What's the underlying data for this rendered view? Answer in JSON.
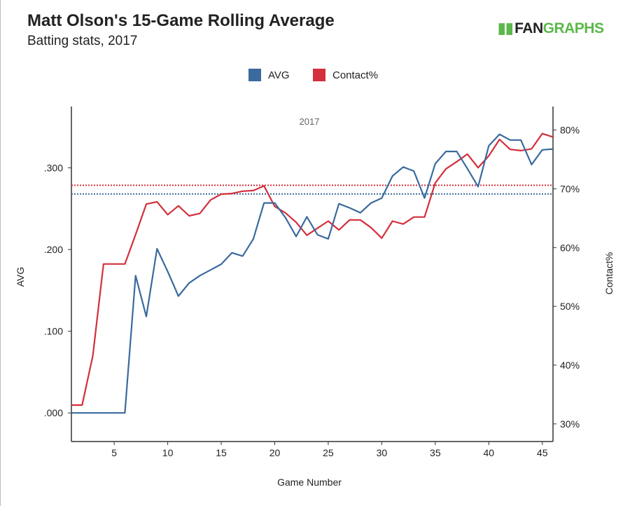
{
  "title": "Matt Olson's 15-Game Rolling Average",
  "subtitle": "Batting stats, 2017",
  "logo": {
    "text_dark": "FAN",
    "text_green": "GRAPHS"
  },
  "chart_data": {
    "type": "line",
    "annotation": "2017",
    "xlabel": "Game Number",
    "ylabel_left": "AVG",
    "ylabel_right": "Contact%",
    "xlim": [
      1,
      46
    ],
    "ylim_left": [
      -0.035,
      0.375
    ],
    "ylim_right": [
      27,
      84
    ],
    "x_ticks": [
      5,
      10,
      15,
      20,
      25,
      30,
      35,
      40,
      45
    ],
    "y_ticks_left": [
      {
        "v": 0,
        "label": ".000"
      },
      {
        "v": 0.1,
        "label": ".100"
      },
      {
        "v": 0.2,
        "label": ".200"
      },
      {
        "v": 0.3,
        "label": ".300"
      }
    ],
    "y_ticks_right": [
      {
        "v": 30,
        "label": "30%"
      },
      {
        "v": 40,
        "label": "40%"
      },
      {
        "v": 50,
        "label": "50%"
      },
      {
        "v": 60,
        "label": "60%"
      },
      {
        "v": 70,
        "label": "70%"
      },
      {
        "v": 80,
        "label": "80%"
      }
    ],
    "x": [
      1,
      2,
      3,
      4,
      5,
      6,
      7,
      8,
      9,
      10,
      11,
      12,
      13,
      14,
      15,
      16,
      17,
      18,
      19,
      20,
      21,
      22,
      23,
      24,
      25,
      26,
      27,
      28,
      29,
      30,
      31,
      32,
      33,
      34,
      35,
      36,
      37,
      38,
      39,
      40,
      41,
      42,
      43,
      44,
      45,
      46
    ],
    "series": [
      {
        "name": "AVG",
        "axis": "left",
        "color": "#3a6a9e",
        "avg_line": 0.268,
        "values": [
          0,
          0,
          0,
          0,
          0,
          0,
          0.168,
          0.118,
          0.201,
          0.173,
          0.143,
          0.159,
          0.168,
          0.175,
          0.182,
          0.196,
          0.192,
          0.213,
          0.257,
          0.257,
          0.239,
          0.216,
          0.24,
          0.218,
          0.213,
          0.256,
          0.251,
          0.245,
          0.257,
          0.263,
          0.29,
          0.301,
          0.296,
          0.263,
          0.305,
          0.32,
          0.32,
          0.299,
          0.277,
          0.327,
          0.341,
          0.334,
          0.334,
          0.304,
          0.322,
          0.323
        ]
      },
      {
        "name": "Contact%",
        "axis": "right",
        "color": "#d32f3c",
        "avg_line": 70.6,
        "values": [
          33.2,
          33.2,
          41.6,
          57.2,
          57.2,
          57.2,
          62.2,
          67.4,
          67.8,
          65.6,
          67.1,
          65.4,
          65.8,
          68.1,
          69.1,
          69.2,
          69.6,
          69.7,
          70.5,
          67.0,
          65.9,
          64.3,
          62.1,
          63.3,
          64.5,
          63.0,
          64.7,
          64.7,
          63.4,
          61.6,
          64.5,
          64.0,
          65.2,
          65.2,
          71.0,
          73.4,
          74.6,
          75.9,
          73.6,
          75.6,
          78.4,
          76.7,
          76.5,
          76.8,
          79.4,
          78.8
        ]
      }
    ]
  }
}
